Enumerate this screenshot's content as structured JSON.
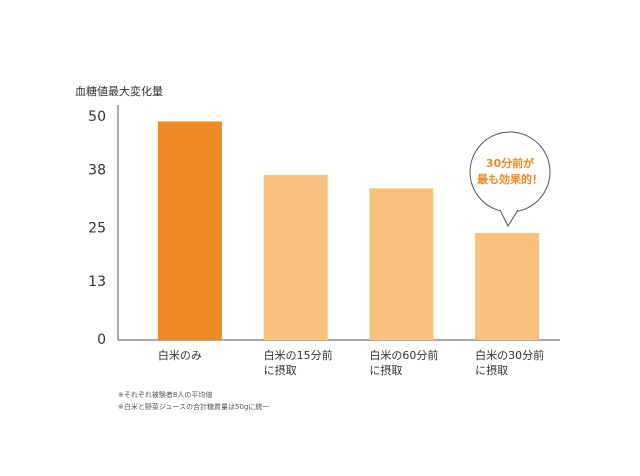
{
  "chart_data": {
    "type": "bar",
    "ylabel": "血糖値最大変化量",
    "categories": [
      "白米のみ",
      "白米の15分前\nに摂取",
      "白米の60分前\nに摂取",
      "白米の30分前\nに摂取"
    ],
    "values": [
      49,
      37,
      34,
      24
    ],
    "colors": [
      "#ef8a26",
      "#f7c07c",
      "#f7c07c",
      "#f7c07c"
    ],
    "ylim": [
      0,
      50
    ],
    "yticks": [
      0,
      13,
      25,
      38,
      50
    ],
    "grid": false,
    "annotation": "30分前が\n最も効果的！",
    "notes": [
      "※それぞれ被験者8人の平均値",
      "※白米と野菜ジュースの合計糖質量は50gに統一"
    ]
  }
}
